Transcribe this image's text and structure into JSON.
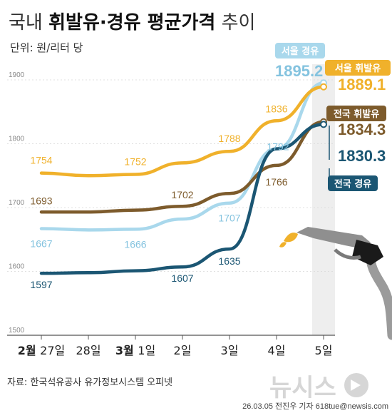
{
  "title": {
    "part1": "국내 ",
    "part2": "휘발유·경유 평균가격",
    "part3": " 추이"
  },
  "unit": "단위: 원/리터 당",
  "source": "자료: 한국석유공사 유가정보시스템 오피넷",
  "credit": "26.03.05 전진우 기자 618tue@newsis.com",
  "logo": "뉴시스",
  "x_axis": {
    "ticks": [
      {
        "month": "2월",
        "day": "27일"
      },
      {
        "month": "",
        "day": "28일"
      },
      {
        "month": "3월",
        "day": "1일"
      },
      {
        "month": "",
        "day": "2일"
      },
      {
        "month": "",
        "day": "3일"
      },
      {
        "month": "",
        "day": "4일"
      },
      {
        "month": "",
        "day": "5일"
      }
    ]
  },
  "y_axis": {
    "ticks": [
      "1900",
      "1800",
      "1700",
      "1600",
      "1500"
    ]
  },
  "chart_data": {
    "type": "line",
    "title": "국내 휘발유·경유 평균가격 추이",
    "ylabel": "원/리터 당",
    "categories": [
      "2월 27일",
      "28일",
      "3월 1일",
      "2일",
      "3일",
      "4일",
      "5일"
    ],
    "ylim": [
      1500,
      1900
    ],
    "yticks": [
      1500,
      1600,
      1700,
      1800,
      1900
    ],
    "grid": true,
    "series": [
      {
        "name": "서울 휘발유",
        "color": "#f0b12b",
        "values": [
          1754,
          1750,
          1752,
          1770,
          1788,
          1836,
          1889.1
        ],
        "labels": [
          "1754",
          "",
          "1752",
          "",
          "1788",
          "1836",
          "1889.1"
        ]
      },
      {
        "name": "전국 휘발유",
        "color": "#7d5b2c",
        "values": [
          1693,
          1693,
          1696,
          1702,
          1722,
          1766,
          1834.3
        ],
        "labels": [
          "1693",
          "",
          "",
          "1702",
          "",
          "1766",
          "1834.3"
        ]
      },
      {
        "name": "서울 경유",
        "color": "#a9d8ec",
        "values": [
          1667,
          1665,
          1666,
          1682,
          1707,
          1792,
          1895.2
        ],
        "labels": [
          "1667",
          "",
          "1666",
          "",
          "1707",
          "1792",
          "1895.2"
        ]
      },
      {
        "name": "전국 경유",
        "color": "#1b5673",
        "values": [
          1597,
          1598,
          1601,
          1607,
          1635,
          1792,
          1830.3
        ],
        "labels": [
          "1597",
          "",
          "",
          "1607",
          "1635",
          "",
          "1830.3"
        ]
      }
    ]
  }
}
